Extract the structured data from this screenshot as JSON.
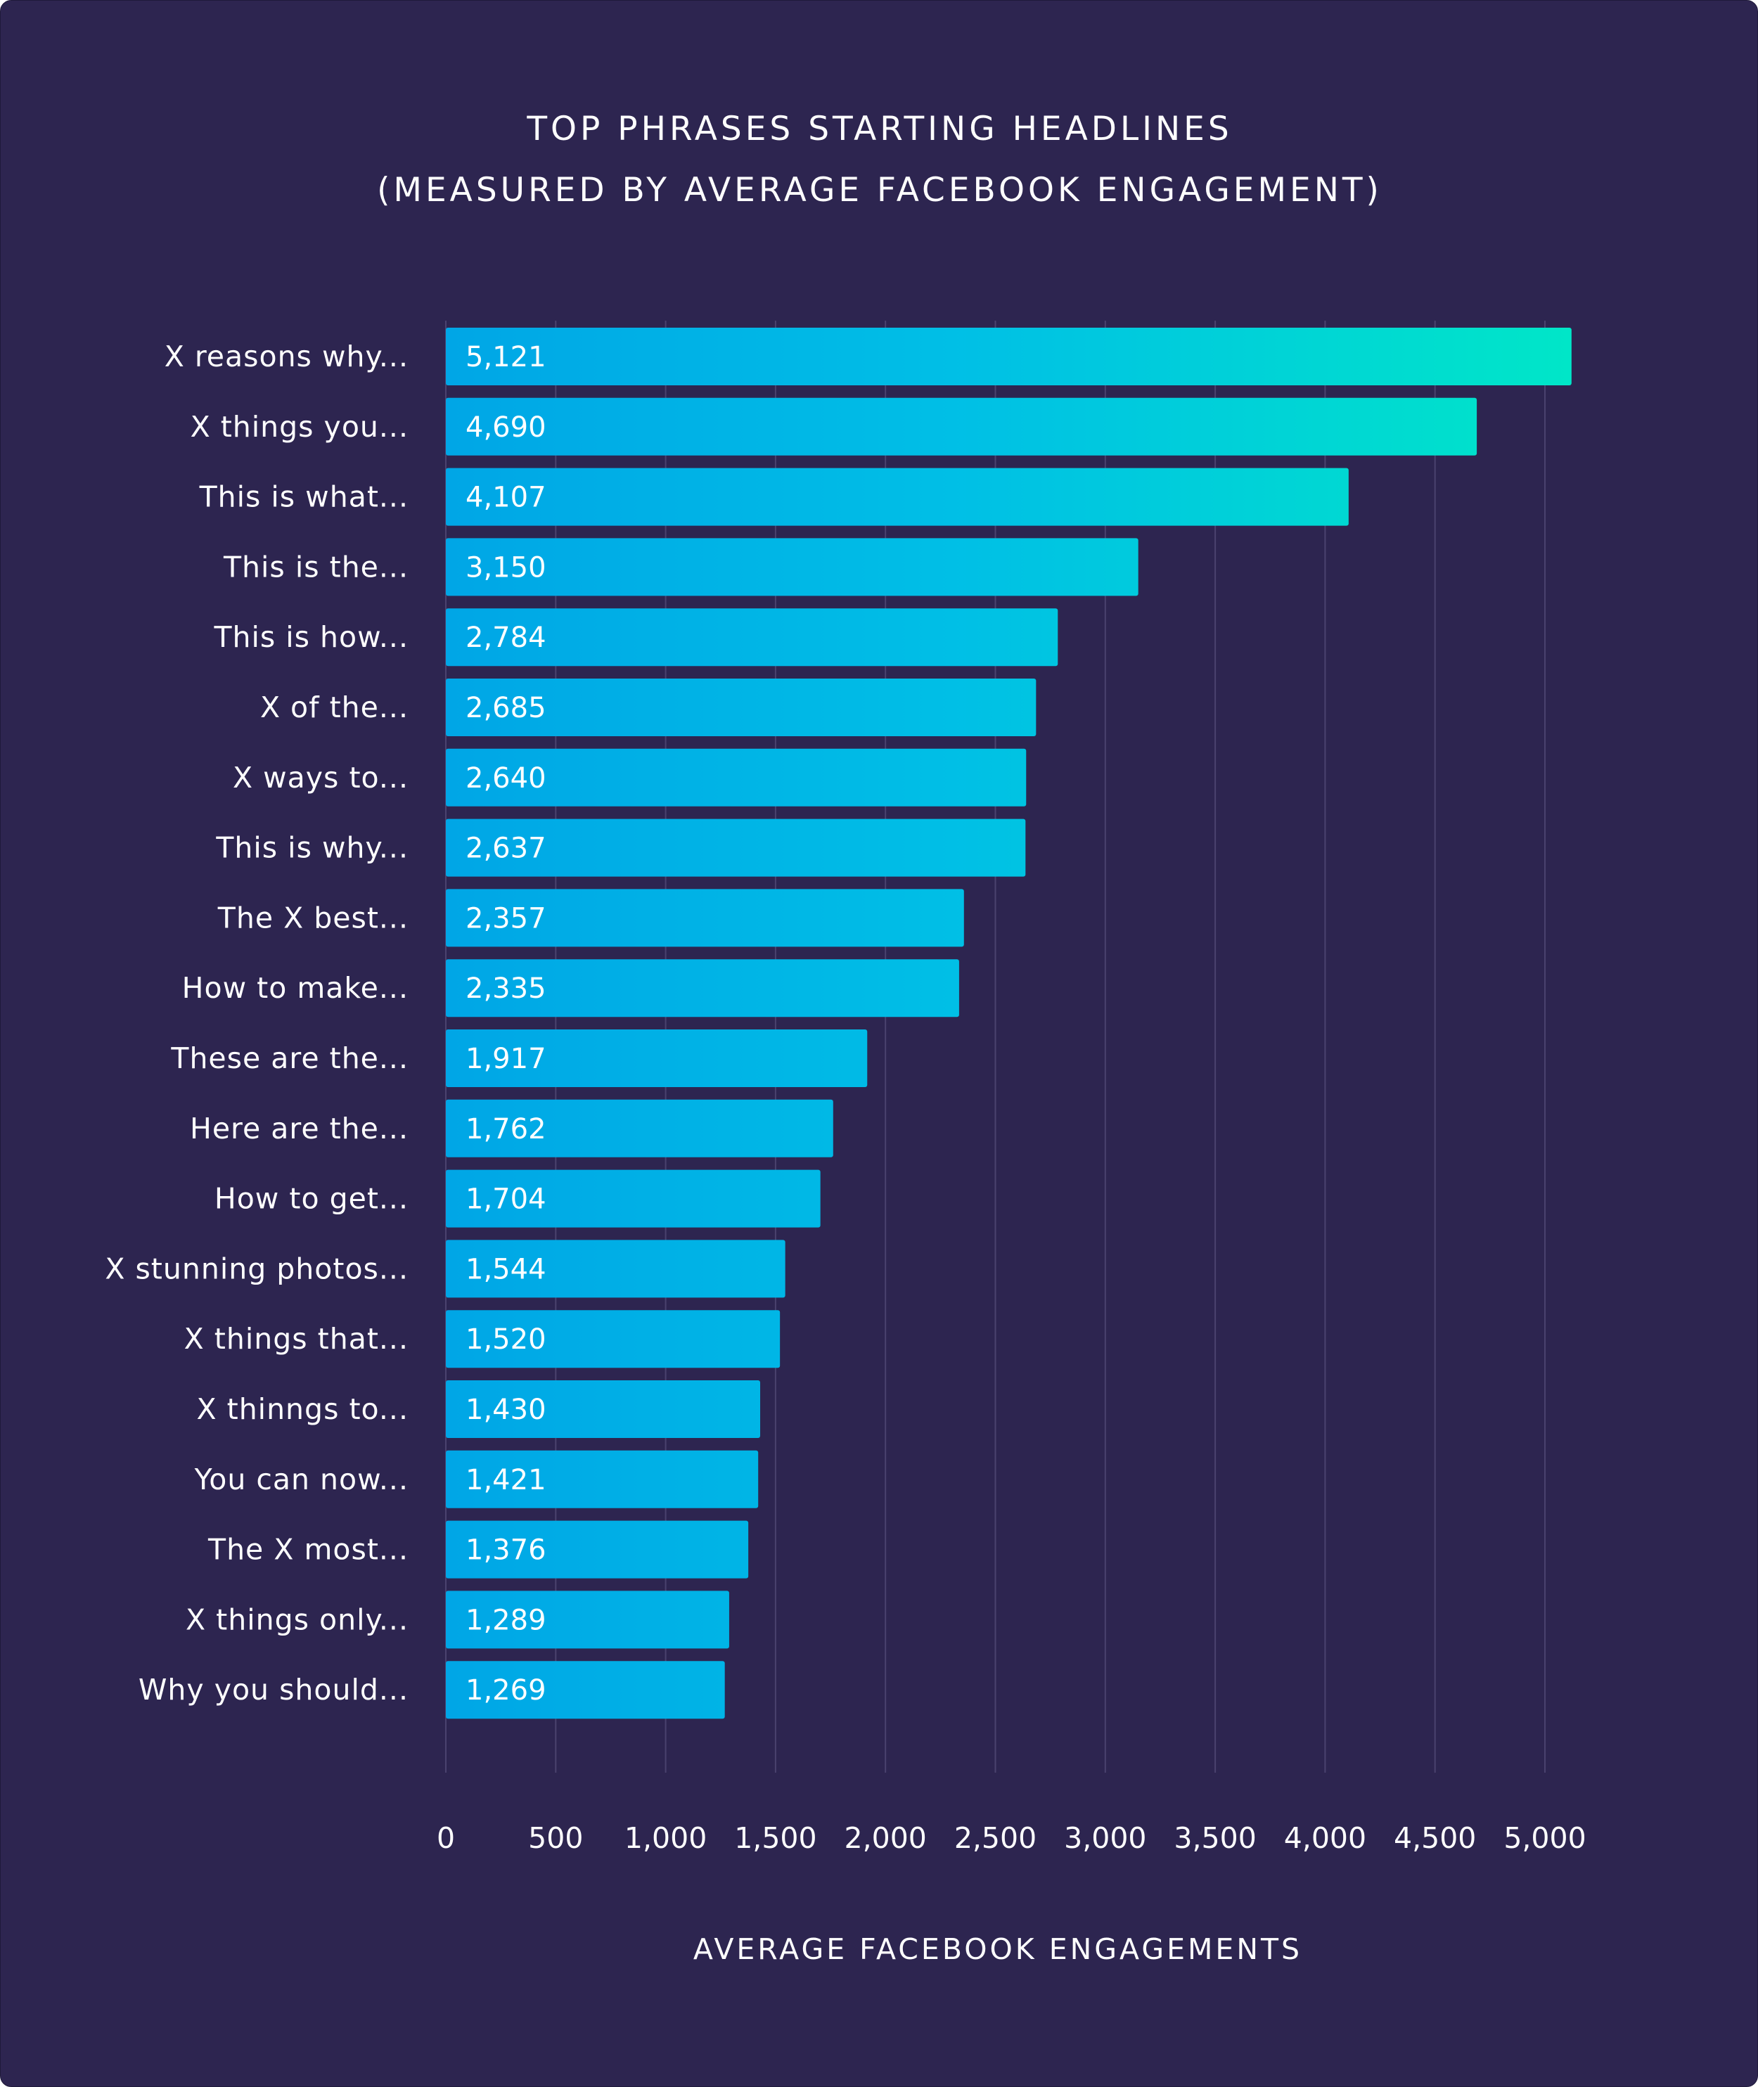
{
  "chart_data": {
    "type": "bar",
    "orientation": "horizontal",
    "title": "TOP PHRASES STARTING HEADLINES",
    "subtitle": "(MEASURED BY AVERAGE FACEBOOK ENGAGEMENT)",
    "xlabel": "AVERAGE FACEBOOK ENGAGEMENTS",
    "ylabel": "",
    "xlim": [
      0,
      5000
    ],
    "xticks": [
      0,
      500,
      1000,
      1500,
      2000,
      2500,
      3000,
      3500,
      4000,
      4500,
      5000
    ],
    "xtick_labels": [
      "0",
      "500",
      "1,000",
      "1,500",
      "2,000",
      "2,500",
      "3,000",
      "3,500",
      "4,000",
      "4,500",
      "5,000"
    ],
    "grid": true,
    "categories": [
      "X reasons why...",
      "X things you...",
      "This is what...",
      "This is the...",
      "This is how...",
      "X of the...",
      "X ways to...",
      "This is why...",
      "The X best...",
      "How to make...",
      "These are the...",
      "Here are the...",
      "How to get...",
      "X stunning photos...",
      "X things that...",
      "X thinngs to...",
      "You can now...",
      "The X most...",
      "X things only...",
      "Why you should..."
    ],
    "values": [
      5121,
      4690,
      4107,
      3150,
      2784,
      2685,
      2640,
      2637,
      2357,
      2335,
      1917,
      1762,
      1704,
      1544,
      1520,
      1430,
      1421,
      1376,
      1289,
      1269
    ],
    "value_labels": [
      "5,121",
      "4,690",
      "4,107",
      "3,150",
      "2,784",
      "2,685",
      "2,640",
      "2,637",
      "2,357",
      "2,335",
      "1,917",
      "1,762",
      "1,704",
      "1,544",
      "1,520",
      "1,430",
      "1,421",
      "1,376",
      "1,289",
      "1,269"
    ]
  },
  "colors": {
    "background": "#2d2550",
    "bar_start": "#00a6e6",
    "bar_mid": "#00bfe6",
    "bar_end": "#00e6c8",
    "grid": "#4a426e",
    "text": "#ffffff"
  }
}
